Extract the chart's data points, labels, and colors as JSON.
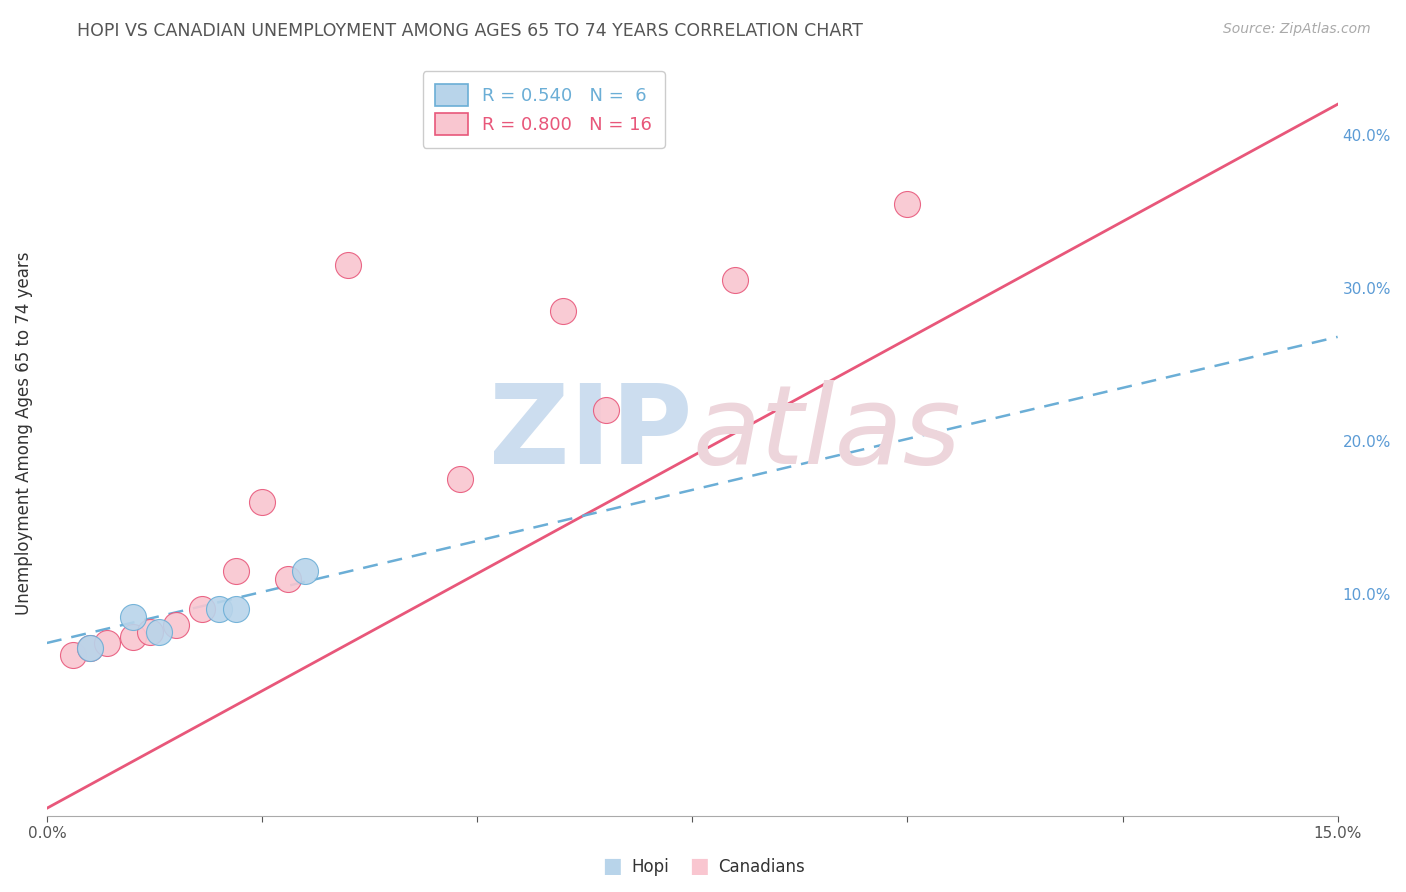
{
  "title": "HOPI VS CANADIAN UNEMPLOYMENT AMONG AGES 65 TO 74 YEARS CORRELATION CHART",
  "source": "Source: ZipAtlas.com",
  "ylabel": "Unemployment Among Ages 65 to 74 years",
  "xlim": [
    0.0,
    0.15
  ],
  "ylim": [
    -0.045,
    0.455
  ],
  "xticks": [
    0.0,
    0.025,
    0.05,
    0.075,
    0.1,
    0.125,
    0.15
  ],
  "xtick_labels": [
    "0.0%",
    "",
    "",
    "",
    "",
    "",
    "15.0%"
  ],
  "yticks_right": [
    0.1,
    0.2,
    0.3,
    0.4
  ],
  "ytick_right_labels": [
    "10.0%",
    "20.0%",
    "30.0%",
    "40.0%"
  ],
  "hopi_x": [
    0.005,
    0.01,
    0.013,
    0.02,
    0.022,
    0.03
  ],
  "hopi_y": [
    0.065,
    0.085,
    0.075,
    0.09,
    0.09,
    0.115
  ],
  "hopi_R": 0.54,
  "hopi_N": 6,
  "hopi_color": "#b8d4ea",
  "hopi_line_color": "#6baed6",
  "canadians_x": [
    0.003,
    0.005,
    0.007,
    0.01,
    0.012,
    0.015,
    0.018,
    0.022,
    0.025,
    0.028,
    0.035,
    0.048,
    0.06,
    0.065,
    0.08,
    0.1
  ],
  "canadians_y": [
    0.06,
    0.065,
    0.068,
    0.072,
    0.075,
    0.08,
    0.09,
    0.115,
    0.16,
    0.11,
    0.315,
    0.175,
    0.285,
    0.22,
    0.305,
    0.355
  ],
  "canadians_R": 0.8,
  "canadians_N": 16,
  "canadians_color": "#f9c6d0",
  "canadians_line_color": "#e8577a",
  "bg_color": "#ffffff",
  "watermark_color_zip": "#ccddef",
  "watermark_color_atlas": "#edd5db",
  "can_line_x0": 0.0,
  "can_line_y0": -0.04,
  "can_line_x1": 0.15,
  "can_line_y1": 0.42,
  "hopi_line_x0": 0.0,
  "hopi_line_y0": 0.068,
  "hopi_line_x1": 0.15,
  "hopi_line_y1": 0.268
}
